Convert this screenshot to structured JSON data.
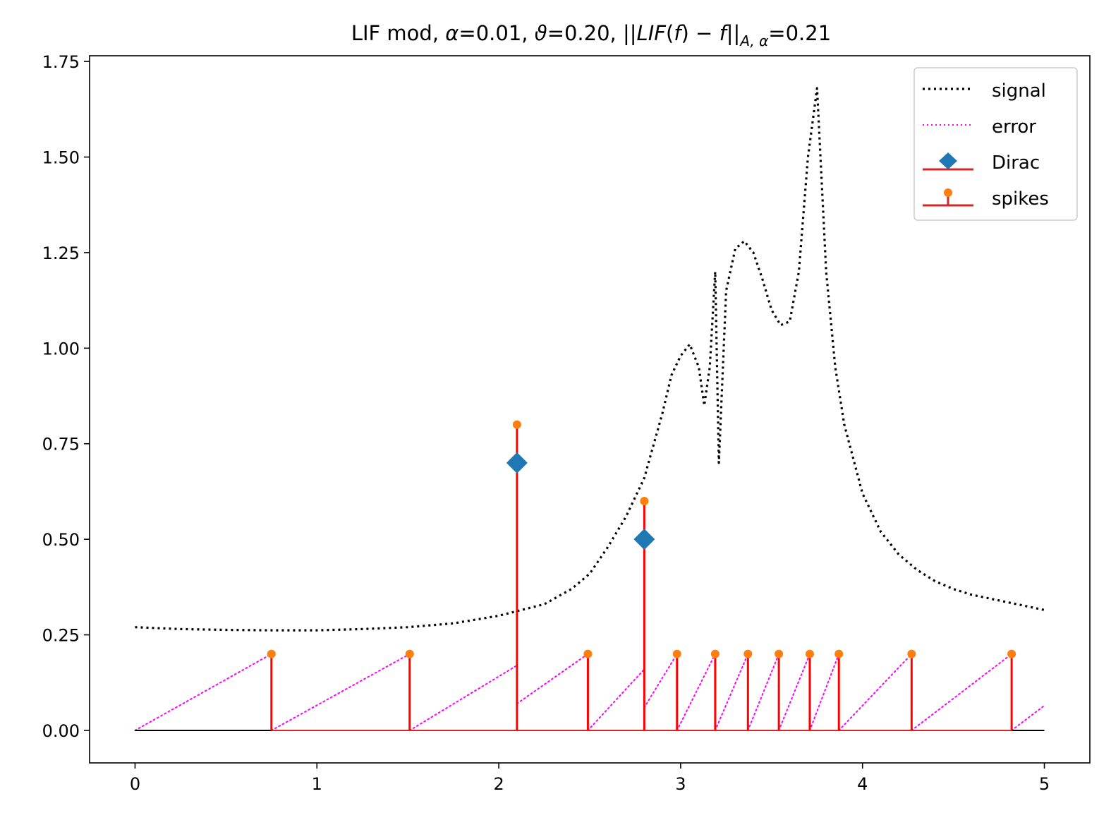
{
  "chart_data": {
    "type": "line",
    "title": "LIF mod, α=0.01, ϑ=0.20, ||LIF(f) − f||A,α=0.21",
    "title_parts": {
      "prefix": "LIF mod, ",
      "alpha_sym": "α",
      "alpha_val": "=0.01, ",
      "theta_sym": "ϑ",
      "theta_val": "=0.20, ",
      "norm_open": "||",
      "lif": "LIF",
      "paren_open": "(",
      "f1": "f",
      "paren_close": ")",
      "minus": " − ",
      "f2": "f",
      "norm_close": "||",
      "subscript": "A, α",
      "norm_val": "=0.21"
    },
    "xlabel": "",
    "ylabel": "",
    "xlim": [
      -0.25,
      5.25
    ],
    "ylim": [
      -0.085,
      1.765
    ],
    "x_ticks": [
      0,
      1,
      2,
      3,
      4,
      5
    ],
    "x_tick_labels": [
      "0",
      "1",
      "2",
      "3",
      "4",
      "5"
    ],
    "y_ticks": [
      0,
      0.25,
      0.5,
      0.75,
      1.0,
      1.25,
      1.5,
      1.75
    ],
    "y_tick_labels": [
      "0.00",
      "0.25",
      "0.50",
      "0.75",
      "1.00",
      "1.25",
      "1.50",
      "1.75"
    ],
    "grid": false,
    "legend_position": "top-right",
    "legend": [
      {
        "label": "signal",
        "style": "dotted-black"
      },
      {
        "label": "error",
        "style": "dotted-magenta"
      },
      {
        "label": "Dirac",
        "style": "diamond-blue-stem"
      },
      {
        "label": "spikes",
        "style": "dot-orange-stem"
      }
    ],
    "colors": {
      "signal": "#000000",
      "error": "#ff00ff",
      "dirac": "#1f77b4",
      "spike_marker": "#ff7f0e",
      "spike_stem": "#ff0000",
      "legend_stem": "#d62728",
      "baseline": "#000000"
    },
    "signal": {
      "x": [
        0,
        0.25,
        0.5,
        0.75,
        1.0,
        1.25,
        1.5,
        1.75,
        2.0,
        2.25,
        2.4,
        2.5,
        2.6,
        2.7,
        2.8,
        2.9,
        2.95,
        3.0,
        3.05,
        3.1,
        3.13,
        3.16,
        3.19,
        3.21,
        3.25,
        3.3,
        3.35,
        3.4,
        3.45,
        3.5,
        3.55,
        3.6,
        3.65,
        3.7,
        3.75,
        3.8,
        3.85,
        3.9,
        4.0,
        4.1,
        4.2,
        4.3,
        4.4,
        4.5,
        4.6,
        4.7,
        4.8,
        4.9,
        5.0
      ],
      "y": [
        0.27,
        0.265,
        0.263,
        0.262,
        0.262,
        0.265,
        0.27,
        0.28,
        0.3,
        0.33,
        0.37,
        0.41,
        0.48,
        0.56,
        0.66,
        0.83,
        0.93,
        0.98,
        1.01,
        0.95,
        0.85,
        0.95,
        1.2,
        0.7,
        1.15,
        1.26,
        1.28,
        1.25,
        1.18,
        1.1,
        1.06,
        1.07,
        1.2,
        1.5,
        1.68,
        1.2,
        0.95,
        0.8,
        0.62,
        0.52,
        0.46,
        0.42,
        0.39,
        0.37,
        0.355,
        0.345,
        0.335,
        0.325,
        0.315
      ]
    },
    "error_segments": [
      {
        "x": [
          0,
          0.75
        ],
        "y": [
          0,
          0.2
        ]
      },
      {
        "x": [
          0.75,
          1.51
        ],
        "y": [
          0,
          0.2
        ]
      },
      {
        "x": [
          1.51,
          2.1
        ],
        "y": [
          0,
          0.17
        ]
      },
      {
        "x": [
          2.1,
          2.49
        ],
        "y": [
          0.07,
          0.2
        ]
      },
      {
        "x": [
          2.49,
          2.8
        ],
        "y": [
          0,
          0.16
        ]
      },
      {
        "x": [
          2.8,
          2.98
        ],
        "y": [
          0.06,
          0.2
        ]
      },
      {
        "x": [
          2.98,
          3.19
        ],
        "y": [
          0,
          0.2
        ]
      },
      {
        "x": [
          3.19,
          3.37
        ],
        "y": [
          0,
          0.2
        ]
      },
      {
        "x": [
          3.37,
          3.54
        ],
        "y": [
          0,
          0.2
        ]
      },
      {
        "x": [
          3.54,
          3.71
        ],
        "y": [
          0,
          0.2
        ]
      },
      {
        "x": [
          3.71,
          3.87
        ],
        "y": [
          0,
          0.2
        ]
      },
      {
        "x": [
          3.87,
          4.27
        ],
        "y": [
          0,
          0.2
        ]
      },
      {
        "x": [
          4.27,
          4.82
        ],
        "y": [
          0,
          0.2
        ]
      },
      {
        "x": [
          4.82,
          5.0
        ],
        "y": [
          0,
          0.065
        ]
      }
    ],
    "dirac": {
      "x": [
        2.1,
        2.8
      ],
      "y": [
        0.7,
        0.5
      ]
    },
    "spikes": {
      "x": [
        0.75,
        1.51,
        2.1,
        2.49,
        2.8,
        2.98,
        3.19,
        3.37,
        3.54,
        3.71,
        3.87,
        4.27,
        4.82
      ],
      "y": [
        0.2,
        0.2,
        0.8,
        0.2,
        0.6,
        0.2,
        0.2,
        0.2,
        0.2,
        0.2,
        0.2,
        0.2,
        0.2
      ]
    },
    "baseline": {
      "x": [
        0,
        5
      ],
      "y": [
        0,
        0
      ]
    },
    "spike_baseline": {
      "x": [
        0.75,
        4.82
      ],
      "y": [
        0,
        0
      ]
    }
  }
}
